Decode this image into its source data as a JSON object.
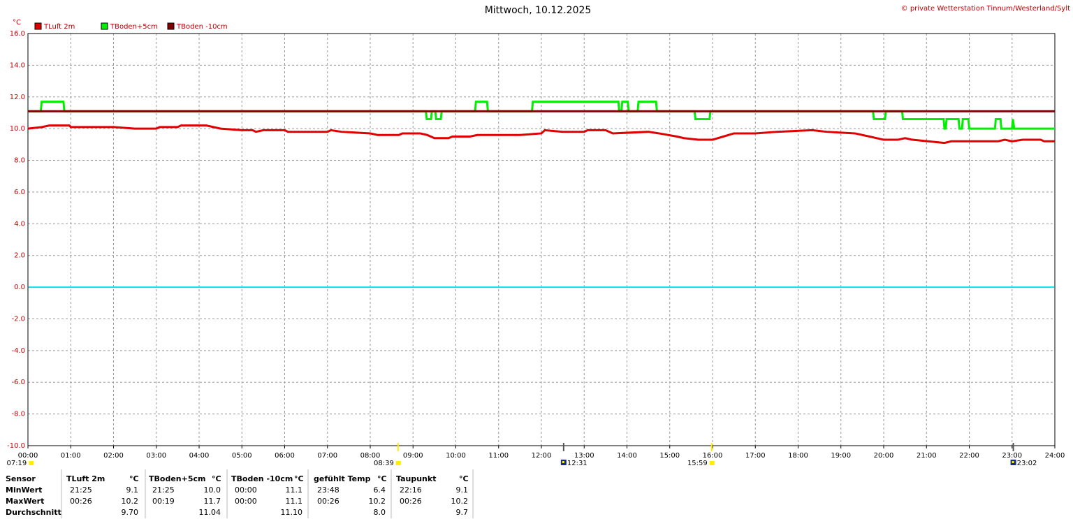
{
  "chart_data": {
    "type": "line",
    "title": "Mittwoch, 10.12.2025",
    "copyright": "© private Wetterstation Tinnum/Westerland/Sylt",
    "y_unit": "°C",
    "xlim": [
      0,
      24
    ],
    "xticks": [
      {
        "value": 0,
        "label": "00:00"
      },
      {
        "value": 1,
        "label": "01:00"
      },
      {
        "value": 2,
        "label": "02:00"
      },
      {
        "value": 3,
        "label": "03:00"
      },
      {
        "value": 4,
        "label": "04:00"
      },
      {
        "value": 5,
        "label": "05:00"
      },
      {
        "value": 6,
        "label": "06:00"
      },
      {
        "value": 7,
        "label": "07:00"
      },
      {
        "value": 8,
        "label": "08:00"
      },
      {
        "value": 9,
        "label": "09:00"
      },
      {
        "value": 10,
        "label": "10:00"
      },
      {
        "value": 11,
        "label": "11:00"
      },
      {
        "value": 12,
        "label": "12:00"
      },
      {
        "value": 13,
        "label": "13:00"
      },
      {
        "value": 14,
        "label": "14:00"
      },
      {
        "value": 15,
        "label": "15:00"
      },
      {
        "value": 16,
        "label": "16:00"
      },
      {
        "value": 17,
        "label": "17:00"
      },
      {
        "value": 18,
        "label": "18:00"
      },
      {
        "value": 19,
        "label": "19:00"
      },
      {
        "value": 20,
        "label": "20:00"
      },
      {
        "value": 21,
        "label": "21:00"
      },
      {
        "value": 22,
        "label": "22:00"
      },
      {
        "value": 23,
        "label": "23:00"
      },
      {
        "value": 24,
        "label": "24:00"
      }
    ],
    "ylim": [
      -10,
      16
    ],
    "yticks": [
      {
        "value": -10,
        "label": "-10.0"
      },
      {
        "value": -8,
        "label": "-8.0"
      },
      {
        "value": -6,
        "label": "-6.0"
      },
      {
        "value": -4,
        "label": "-4.0"
      },
      {
        "value": -2,
        "label": "-2.0"
      },
      {
        "value": 0,
        "label": "0.0"
      },
      {
        "value": 2,
        "label": "2.0"
      },
      {
        "value": 4,
        "label": "4.0"
      },
      {
        "value": 6,
        "label": "6.0"
      },
      {
        "value": 8,
        "label": "8.0"
      },
      {
        "value": 10,
        "label": "10.0"
      },
      {
        "value": 12,
        "label": "12.0"
      },
      {
        "value": 14,
        "label": "14.0"
      },
      {
        "value": 16,
        "label": "16.0"
      }
    ],
    "grid": true,
    "zero_line": 0,
    "zero_line_color": "#00e5ee",
    "series": [
      {
        "name": "TLuft 2m",
        "color": "#e00000",
        "x": [
          0,
          0.33,
          0.5,
          0.97,
          1,
          2,
          2.5,
          3,
          3.08,
          3.5,
          3.58,
          4.17,
          4.5,
          5,
          5.25,
          5.33,
          5.5,
          6,
          6.08,
          7,
          7.08,
          7.33,
          8,
          8.17,
          8.67,
          8.75,
          9.17,
          9.33,
          9.5,
          9.83,
          9.92,
          10.33,
          10.5,
          11.5,
          12,
          12.08,
          12.5,
          13,
          13.08,
          13.5,
          13.67,
          14.5,
          14.75,
          15.17,
          15.33,
          15.67,
          16,
          16.25,
          16.5,
          17,
          17.5,
          18.33,
          18.67,
          19.33,
          19.67,
          20,
          20.33,
          20.5,
          20.67,
          21.42,
          21.58,
          22.67,
          22.83,
          23,
          23.25,
          23.67,
          23.75,
          24
        ],
        "values": [
          10.0,
          10.1,
          10.2,
          10.2,
          10.1,
          10.1,
          10.0,
          10.0,
          10.1,
          10.1,
          10.2,
          10.2,
          10.0,
          9.9,
          9.9,
          9.8,
          9.9,
          9.9,
          9.8,
          9.8,
          9.9,
          9.8,
          9.7,
          9.6,
          9.6,
          9.7,
          9.7,
          9.6,
          9.4,
          9.4,
          9.5,
          9.5,
          9.6,
          9.6,
          9.7,
          9.9,
          9.8,
          9.8,
          9.9,
          9.9,
          9.7,
          9.8,
          9.7,
          9.5,
          9.4,
          9.3,
          9.3,
          9.5,
          9.7,
          9.7,
          9.8,
          9.9,
          9.8,
          9.7,
          9.5,
          9.3,
          9.3,
          9.4,
          9.3,
          9.1,
          9.2,
          9.2,
          9.3,
          9.2,
          9.3,
          9.3,
          9.2,
          9.2
        ]
      },
      {
        "name": "TBoden+5cm",
        "color": "#00ee00",
        "x": [
          0,
          0.3,
          0.32,
          0.83,
          0.85,
          9.3,
          9.32,
          9.42,
          9.44,
          9.52,
          9.54,
          9.65,
          9.67,
          10.45,
          10.47,
          10.73,
          10.75,
          11.78,
          11.8,
          13.8,
          13.82,
          13.87,
          13.89,
          14.02,
          14.04,
          14.25,
          14.27,
          14.68,
          14.7,
          15.58,
          15.6,
          15.93,
          15.95,
          19.75,
          19.77,
          20.03,
          20.05,
          20.43,
          20.45,
          21.4,
          21.42,
          21.45,
          21.47,
          21.75,
          21.77,
          21.83,
          21.85,
          21.98,
          22,
          22.6,
          22.62,
          22.73,
          22.75,
          23,
          23.02,
          23.05,
          24
        ],
        "values": [
          11.1,
          11.1,
          11.7,
          11.7,
          11.1,
          11.1,
          10.6,
          10.6,
          11.1,
          11.1,
          10.6,
          10.6,
          11.1,
          11.1,
          11.7,
          11.7,
          11.1,
          11.1,
          11.7,
          11.7,
          11.1,
          11.1,
          11.7,
          11.7,
          11.1,
          11.1,
          11.7,
          11.7,
          11.1,
          11.1,
          10.6,
          10.6,
          11.1,
          11.1,
          10.6,
          10.6,
          11.1,
          11.1,
          10.6,
          10.6,
          10.0,
          10.0,
          10.6,
          10.6,
          10.0,
          10.0,
          10.6,
          10.6,
          10.0,
          10.0,
          10.6,
          10.6,
          10.0,
          10.0,
          10.6,
          10.0,
          10.0
        ]
      },
      {
        "name": "TBoden -10cm",
        "color": "#800000",
        "x": [
          0,
          24
        ],
        "values": [
          11.1,
          11.1
        ]
      }
    ],
    "markers": [
      {
        "x": 0.07,
        "label": "07:19",
        "kind": "sun",
        "color": "#ffee00"
      },
      {
        "x": 8.65,
        "label": "08:39",
        "kind": "sun",
        "color": "#ffee00"
      },
      {
        "x": 12.52,
        "label": "12:31",
        "kind": "moon",
        "color": "#555555"
      },
      {
        "x": 15.98,
        "label": "15:59",
        "kind": "sun",
        "color": "#ffee00"
      },
      {
        "x": 23.03,
        "label": "23:02",
        "kind": "moon",
        "color": "#555555"
      }
    ]
  },
  "table": {
    "header": [
      "Sensor",
      "TLuft 2m",
      "°C",
      "TBoden+5cm",
      "°C",
      "TBoden -10cm",
      "°C",
      "gefühlt Temp",
      "°C",
      "Taupunkt",
      "°C"
    ],
    "rows": [
      [
        "MinWert",
        "21:25",
        "9.1",
        "21:25",
        "10.0",
        "00:00",
        "11.1",
        "23:48",
        "6.4",
        "22:16",
        "9.1"
      ],
      [
        "MaxWert",
        "00:26",
        "10.2",
        "00:19",
        "11.7",
        "00:00",
        "11.1",
        "00:26",
        "10.2",
        "00:26",
        "10.2"
      ],
      [
        "Durchschnitt",
        null,
        "9.70",
        null,
        "11.04",
        null,
        "11.10",
        null,
        "8.0",
        null,
        "9.7"
      ]
    ]
  }
}
